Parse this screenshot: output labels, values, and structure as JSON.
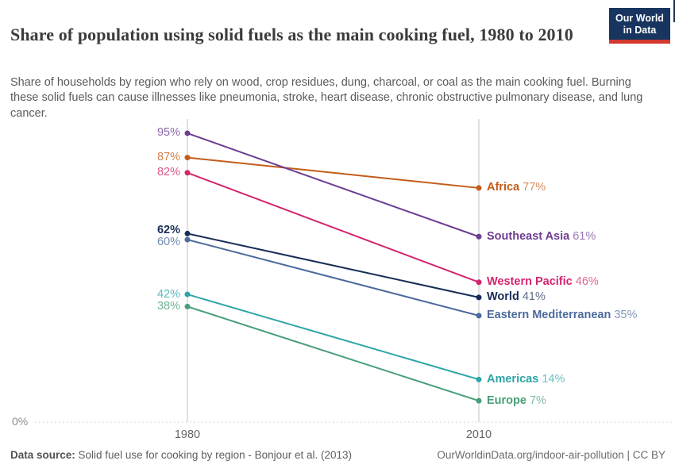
{
  "header": {
    "title": "Share of population using solid fuels as the main cooking fuel, 1980 to 2010",
    "subtitle": "Share of households by region who rely on wood, crop residues, dung, charcoal, or coal as the main cooking fuel. Burning these solid fuels can cause illnesses like pneumonia, stroke, heart disease, chronic obstructive pulmonary disease, and lung cancer.",
    "logo": {
      "line1": "Our World",
      "line2": "in Data",
      "bg_color": "#18355f",
      "bar_color": "#d2382e"
    }
  },
  "chart_data": {
    "type": "line",
    "variant": "slope",
    "title": "Share of population using solid fuels as the main cooking fuel, 1980 to 2010",
    "x": [
      1980,
      2010
    ],
    "x_labels": [
      "1980",
      "2010"
    ],
    "ylim": [
      0,
      100
    ],
    "baseline_label": "0%",
    "grid": "baseline-dashed-only",
    "legend_position": "right-inline-labels",
    "series": [
      {
        "name": "Africa",
        "values": [
          87,
          77
        ],
        "value_labels": [
          "87%",
          "77%"
        ],
        "color": "#c35c1a",
        "bold": false
      },
      {
        "name": "Southeast Asia",
        "values": [
          95,
          61
        ],
        "value_labels": [
          "95%",
          "61%"
        ],
        "color": "#6d3e91",
        "bold": false
      },
      {
        "name": "Western Pacific",
        "values": [
          82,
          46
        ],
        "value_labels": [
          "82%",
          "46%"
        ],
        "color": "#d2256e",
        "bold": false
      },
      {
        "name": "World",
        "values": [
          62,
          41
        ],
        "value_labels": [
          "62%",
          "41%"
        ],
        "color": "#172d56",
        "bold": true
      },
      {
        "name": "Eastern Mediterranean",
        "values": [
          60,
          35
        ],
        "value_labels": [
          "60%",
          "35%"
        ],
        "color": "#4c6a9c",
        "bold": false
      },
      {
        "name": "Americas",
        "values": [
          42,
          14
        ],
        "value_labels": [
          "42%",
          "14%"
        ],
        "color": "#2ca5a8",
        "bold": false
      },
      {
        "name": "Europe",
        "values": [
          38,
          7
        ],
        "value_labels": [
          "38%",
          "7%"
        ],
        "color": "#489e78",
        "bold": false
      }
    ]
  },
  "footer": {
    "source_label": "Data source:",
    "source_text": " Solid fuel use for cooking by region - Bonjour et al. (2013)",
    "credit": "OurWorldinData.org/indoor-air-pollution | CC BY"
  }
}
